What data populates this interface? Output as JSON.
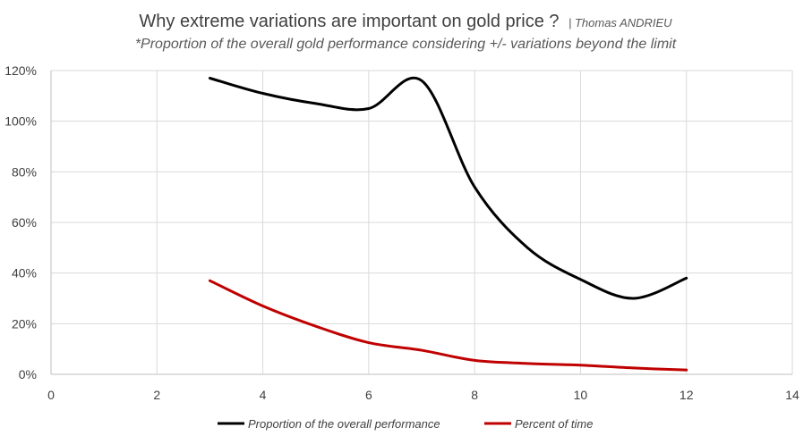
{
  "chart_data": {
    "type": "line",
    "title": "Why extreme variations are important on gold price ?",
    "author": "| Thomas ANDRIEU",
    "subtitle": "*Proportion of the overall gold performance considering +/- variations beyond the limit",
    "xlabel": "",
    "ylabel": "",
    "xlim": [
      0,
      14
    ],
    "ylim": [
      0,
      1.2
    ],
    "x_ticks": [
      0,
      2,
      4,
      6,
      8,
      10,
      12,
      14
    ],
    "y_ticks": [
      0,
      0.2,
      0.4,
      0.6,
      0.8,
      1.0,
      1.2
    ],
    "y_tick_labels": [
      "0%",
      "20%",
      "40%",
      "60%",
      "80%",
      "100%",
      "120%"
    ],
    "x_tick_labels": [
      "0",
      "2",
      "4",
      "6",
      "8",
      "10",
      "12",
      "14"
    ],
    "grid": true,
    "legend_position": "bottom",
    "series": [
      {
        "name": "Proportion of the overall performance",
        "color": "#000000",
        "x": [
          3,
          4,
          5,
          6,
          7,
          8,
          9,
          10,
          11,
          12
        ],
        "y": [
          1.17,
          1.11,
          1.07,
          1.05,
          1.16,
          0.74,
          0.5,
          0.375,
          0.3,
          0.38
        ]
      },
      {
        "name": "Percent of time",
        "color": "#c00000",
        "x": [
          3,
          4,
          5,
          6,
          7,
          8,
          9,
          10,
          11,
          12
        ],
        "y": [
          0.37,
          0.27,
          0.19,
          0.125,
          0.095,
          0.055,
          0.043,
          0.036,
          0.025,
          0.017
        ]
      }
    ]
  }
}
